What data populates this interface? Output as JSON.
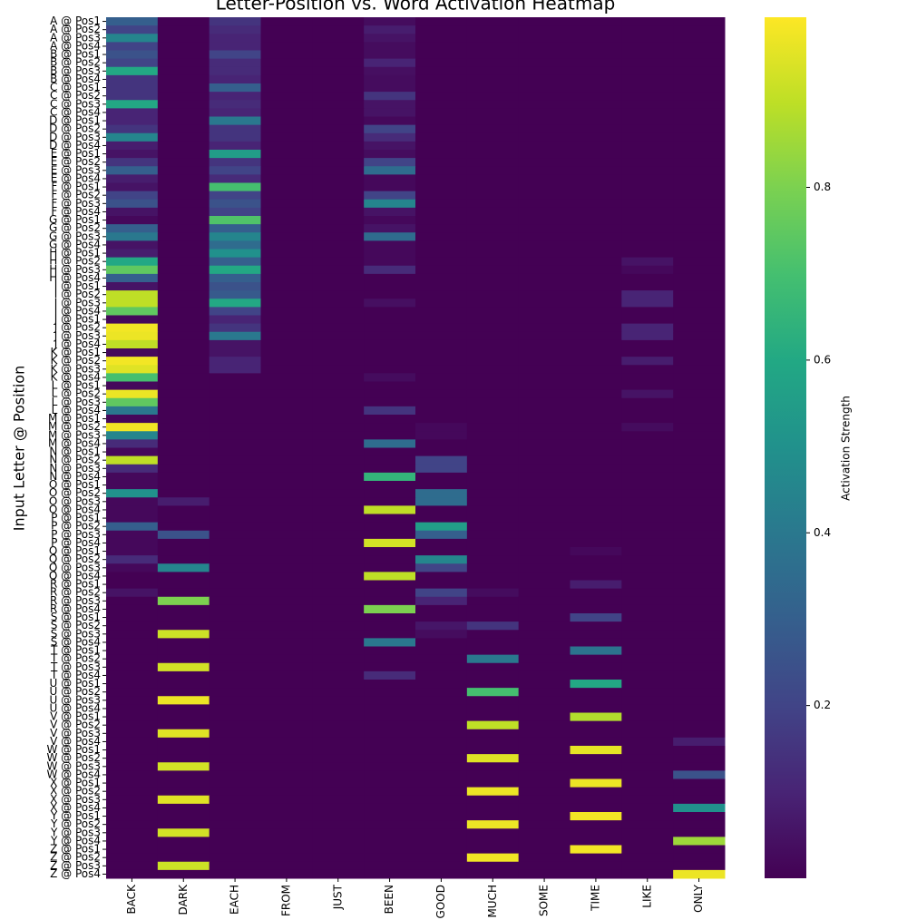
{
  "chart_data": {
    "type": "heatmap",
    "title": "Letter-Position vs. Word Activation Heatmap",
    "ylabel": "Input Letter @ Position",
    "colorbar_label": "Activation Strength",
    "colormap": "viridis",
    "zlim": [
      0,
      0.997
    ],
    "zticks": [
      0.2,
      0.4,
      0.6,
      0.8
    ],
    "x_categories": [
      "BACK",
      "DARK",
      "EACH",
      "FROM",
      "JUST",
      "BEEN",
      "GOOD",
      "MUCH",
      "SOME",
      "TIME",
      "LIKE",
      "ONLY"
    ],
    "y_categories": [
      "A @ Pos1",
      "A @ Pos2",
      "A @ Pos3",
      "A @ Pos4",
      "B @ Pos1",
      "B @ Pos2",
      "B @ Pos3",
      "B @ Pos4",
      "C @ Pos1",
      "C @ Pos2",
      "C @ Pos3",
      "C @ Pos4",
      "D @ Pos1",
      "D @ Pos2",
      "D @ Pos3",
      "D @ Pos4",
      "E @ Pos1",
      "E @ Pos2",
      "E @ Pos3",
      "E @ Pos4",
      "F @ Pos1",
      "F @ Pos2",
      "F @ Pos3",
      "F @ Pos4",
      "G @ Pos1",
      "G @ Pos2",
      "G @ Pos3",
      "G @ Pos4",
      "H @ Pos1",
      "H @ Pos2",
      "H @ Pos3",
      "H @ Pos4",
      "I @ Pos1",
      "I @ Pos2",
      "I @ Pos3",
      "I @ Pos4",
      "J @ Pos1",
      "J @ Pos2",
      "J @ Pos3",
      "J @ Pos4",
      "K @ Pos1",
      "K @ Pos2",
      "K @ Pos3",
      "K @ Pos4",
      "L @ Pos1",
      "L @ Pos2",
      "L @ Pos3",
      "L @ Pos4",
      "M @ Pos1",
      "M @ Pos2",
      "M @ Pos3",
      "M @ Pos4",
      "N @ Pos1",
      "N @ Pos2",
      "N @ Pos3",
      "N @ Pos4",
      "O @ Pos1",
      "O @ Pos2",
      "O @ Pos3",
      "O @ Pos4",
      "P @ Pos1",
      "P @ Pos2",
      "P @ Pos3",
      "P @ Pos4",
      "Q @ Pos1",
      "Q @ Pos2",
      "Q @ Pos3",
      "Q @ Pos4",
      "R @ Pos1",
      "R @ Pos2",
      "R @ Pos3",
      "R @ Pos4",
      "S @ Pos1",
      "S @ Pos2",
      "S @ Pos3",
      "S @ Pos4",
      "T @ Pos1",
      "T @ Pos2",
      "T @ Pos3",
      "T @ Pos4",
      "U @ Pos1",
      "U @ Pos2",
      "U @ Pos3",
      "U @ Pos4",
      "V @ Pos1",
      "V @ Pos2",
      "V @ Pos3",
      "V @ Pos4",
      "W @ Pos1",
      "W @ Pos2",
      "W @ Pos3",
      "W @ Pos4",
      "X @ Pos1",
      "X @ Pos2",
      "X @ Pos3",
      "X @ Pos4",
      "Y @ Pos1",
      "Y @ Pos2",
      "Y @ Pos3",
      "Y @ Pos4",
      "Z @ Pos1",
      "Z @ Pos2",
      "Z @ Pos3",
      "Z @ Pos4"
    ],
    "z": [
      [
        0.3,
        0,
        0.15,
        0,
        0,
        0.03,
        0,
        0,
        0,
        0,
        0,
        0
      ],
      [
        0.2,
        0,
        0.12,
        0,
        0,
        0.08,
        0,
        0,
        0,
        0,
        0,
        0
      ],
      [
        0.45,
        0,
        0.1,
        0,
        0,
        0.05,
        0,
        0,
        0,
        0,
        0,
        0
      ],
      [
        0.2,
        0,
        0.1,
        0,
        0,
        0.03,
        0,
        0,
        0,
        0,
        0,
        0
      ],
      [
        0.25,
        0,
        0.2,
        0,
        0,
        0.03,
        0,
        0,
        0,
        0,
        0,
        0
      ],
      [
        0.2,
        0,
        0.12,
        0,
        0,
        0.1,
        0,
        0,
        0,
        0,
        0,
        0
      ],
      [
        0.6,
        0,
        0.12,
        0,
        0,
        0.04,
        0,
        0,
        0,
        0,
        0,
        0
      ],
      [
        0.15,
        0,
        0.1,
        0,
        0,
        0.03,
        0,
        0,
        0,
        0,
        0,
        0
      ],
      [
        0.15,
        0,
        0.3,
        0,
        0,
        0.03,
        0,
        0,
        0,
        0,
        0,
        0
      ],
      [
        0.15,
        0,
        0.1,
        0,
        0,
        0.15,
        0,
        0,
        0,
        0,
        0,
        0
      ],
      [
        0.6,
        0,
        0.12,
        0,
        0,
        0.05,
        0,
        0,
        0,
        0,
        0,
        0
      ],
      [
        0.1,
        0,
        0.1,
        0,
        0,
        0.05,
        0,
        0,
        0,
        0,
        0,
        0
      ],
      [
        0.1,
        0,
        0.4,
        0,
        0,
        0.02,
        0,
        0,
        0,
        0,
        0,
        0
      ],
      [
        0.15,
        0,
        0.15,
        0,
        0,
        0.2,
        0,
        0,
        0,
        0,
        0,
        0
      ],
      [
        0.45,
        0,
        0.15,
        0,
        0,
        0.12,
        0,
        0,
        0,
        0,
        0,
        0
      ],
      [
        0.08,
        0,
        0.1,
        0,
        0,
        0.05,
        0,
        0,
        0,
        0,
        0,
        0
      ],
      [
        0.05,
        0,
        0.55,
        0,
        0,
        0.03,
        0,
        0,
        0,
        0,
        0,
        0
      ],
      [
        0.15,
        0,
        0.15,
        0,
        0,
        0.2,
        0,
        0,
        0,
        0,
        0,
        0
      ],
      [
        0.3,
        0,
        0.2,
        0,
        0,
        0.35,
        0,
        0,
        0,
        0,
        0,
        0
      ],
      [
        0.08,
        0,
        0.12,
        0,
        0,
        0.02,
        0,
        0,
        0,
        0,
        0,
        0
      ],
      [
        0.05,
        0,
        0.7,
        0,
        0,
        0.02,
        0,
        0,
        0,
        0,
        0,
        0
      ],
      [
        0.2,
        0,
        0.2,
        0,
        0,
        0.2,
        0,
        0,
        0,
        0,
        0,
        0
      ],
      [
        0.25,
        0,
        0.25,
        0,
        0,
        0.45,
        0,
        0,
        0,
        0,
        0,
        0
      ],
      [
        0.05,
        0,
        0.2,
        0,
        0,
        0.05,
        0,
        0,
        0,
        0,
        0,
        0
      ],
      [
        0.02,
        0,
        0.72,
        0,
        0,
        0.02,
        0,
        0,
        0,
        0,
        0,
        0
      ],
      [
        0.3,
        0,
        0.3,
        0,
        0,
        0.05,
        0,
        0,
        0,
        0,
        0,
        0
      ],
      [
        0.4,
        0,
        0.45,
        0,
        0,
        0.35,
        0,
        0,
        0,
        0,
        0,
        0
      ],
      [
        0.05,
        0,
        0.35,
        0,
        0,
        0.02,
        0,
        0,
        0,
        0,
        0,
        0
      ],
      [
        0.08,
        0,
        0.5,
        0,
        0,
        0.02,
        0,
        0,
        0,
        0,
        0,
        0
      ],
      [
        0.6,
        0,
        0.3,
        0,
        0,
        0.02,
        0,
        0,
        0,
        0,
        0.05,
        0
      ],
      [
        0.75,
        0,
        0.6,
        0,
        0,
        0.12,
        0,
        0,
        0,
        0,
        0.02,
        0
      ],
      [
        0.3,
        0,
        0.3,
        0,
        0,
        0,
        0,
        0,
        0,
        0,
        0,
        0
      ],
      [
        0.05,
        0,
        0.25,
        0,
        0,
        0,
        0,
        0,
        0,
        0,
        0,
        0
      ],
      [
        0.9,
        0,
        0.28,
        0,
        0,
        0,
        0,
        0,
        0,
        0,
        0.1,
        0
      ],
      [
        0.9,
        0,
        0.6,
        0,
        0,
        0.04,
        0,
        0,
        0,
        0,
        0.1,
        0
      ],
      [
        0.75,
        0,
        0.2,
        0,
        0,
        0,
        0,
        0,
        0,
        0,
        0,
        0
      ],
      [
        0.02,
        0,
        0.1,
        0,
        0,
        0,
        0,
        0,
        0,
        0,
        0,
        0
      ],
      [
        0.98,
        0,
        0.15,
        0,
        0,
        0,
        0,
        0,
        0,
        0,
        0.1,
        0
      ],
      [
        0.97,
        0,
        0.4,
        0,
        0,
        0,
        0,
        0,
        0,
        0,
        0.1,
        0
      ],
      [
        0.9,
        0,
        0.05,
        0,
        0,
        0,
        0,
        0,
        0,
        0,
        0,
        0
      ],
      [
        0.02,
        0,
        0.05,
        0,
        0,
        0,
        0,
        0,
        0,
        0,
        0,
        0
      ],
      [
        0.98,
        0,
        0.1,
        0,
        0,
        0,
        0,
        0,
        0,
        0,
        0.08,
        0
      ],
      [
        0.95,
        0,
        0.1,
        0,
        0,
        0,
        0,
        0,
        0,
        0,
        0,
        0
      ],
      [
        0.7,
        0,
        0,
        0,
        0,
        0.03,
        0,
        0,
        0,
        0,
        0,
        0
      ],
      [
        0.02,
        0,
        0,
        0,
        0,
        0,
        0,
        0,
        0,
        0,
        0,
        0
      ],
      [
        0.97,
        0,
        0,
        0,
        0,
        0,
        0,
        0,
        0,
        0,
        0.05,
        0
      ],
      [
        0.75,
        0,
        0,
        0,
        0,
        0,
        0,
        0,
        0,
        0,
        0,
        0
      ],
      [
        0.4,
        0,
        0,
        0,
        0,
        0.15,
        0,
        0,
        0,
        0,
        0,
        0
      ],
      [
        0.02,
        0,
        0,
        0,
        0,
        0,
        0,
        0,
        0,
        0,
        0,
        0
      ],
      [
        0.98,
        0,
        0,
        0,
        0,
        0,
        0.02,
        0,
        0,
        0,
        0.03,
        0
      ],
      [
        0.45,
        0,
        0,
        0,
        0,
        0,
        0.02,
        0,
        0,
        0,
        0,
        0
      ],
      [
        0.12,
        0,
        0,
        0,
        0,
        0.35,
        0,
        0,
        0,
        0,
        0,
        0
      ],
      [
        0.02,
        0,
        0,
        0,
        0,
        0,
        0,
        0,
        0,
        0,
        0,
        0
      ],
      [
        0.9,
        0,
        0,
        0,
        0,
        0,
        0.2,
        0,
        0,
        0,
        0,
        0
      ],
      [
        0.12,
        0,
        0,
        0,
        0,
        0,
        0.2,
        0,
        0,
        0,
        0,
        0
      ],
      [
        0.02,
        0,
        0,
        0,
        0,
        0.65,
        0,
        0,
        0,
        0,
        0,
        0
      ],
      [
        0.02,
        0,
        0,
        0,
        0,
        0,
        0,
        0,
        0,
        0,
        0,
        0
      ],
      [
        0.5,
        0,
        0,
        0,
        0,
        0,
        0.35,
        0,
        0,
        0,
        0,
        0
      ],
      [
        0.02,
        0.08,
        0,
        0,
        0,
        0,
        0.35,
        0,
        0,
        0,
        0,
        0
      ],
      [
        0.02,
        0,
        0,
        0,
        0,
        0.9,
        0,
        0,
        0,
        0,
        0,
        0
      ],
      [
        0.02,
        0,
        0,
        0,
        0,
        0,
        0,
        0,
        0,
        0,
        0,
        0
      ],
      [
        0.3,
        0,
        0,
        0,
        0,
        0,
        0.55,
        0,
        0,
        0,
        0,
        0
      ],
      [
        0.02,
        0.25,
        0,
        0,
        0,
        0,
        0.3,
        0,
        0,
        0,
        0,
        0
      ],
      [
        0.02,
        0,
        0,
        0,
        0,
        0.93,
        0,
        0,
        0,
        0,
        0,
        0
      ],
      [
        0.02,
        0,
        0,
        0,
        0,
        0,
        0,
        0,
        0,
        0.02,
        0,
        0
      ],
      [
        0.12,
        0,
        0,
        0,
        0,
        0,
        0.45,
        0,
        0,
        0,
        0,
        0
      ],
      [
        0.02,
        0.45,
        0,
        0,
        0,
        0,
        0.2,
        0,
        0,
        0,
        0,
        0
      ],
      [
        0,
        0,
        0,
        0,
        0,
        0.9,
        0,
        0,
        0,
        0,
        0,
        0
      ],
      [
        0,
        0,
        0,
        0,
        0,
        0,
        0,
        0,
        0,
        0.08,
        0,
        0
      ],
      [
        0.05,
        0,
        0,
        0,
        0,
        0,
        0.2,
        0.03,
        0,
        0,
        0,
        0
      ],
      [
        0,
        0.8,
        0,
        0,
        0,
        0,
        0.1,
        0,
        0,
        0,
        0,
        0
      ],
      [
        0,
        0,
        0,
        0,
        0,
        0.8,
        0,
        0,
        0,
        0,
        0,
        0
      ],
      [
        0,
        0,
        0,
        0,
        0,
        0,
        0,
        0,
        0,
        0.2,
        0,
        0
      ],
      [
        0,
        0,
        0,
        0,
        0,
        0,
        0.06,
        0.15,
        0,
        0,
        0,
        0
      ],
      [
        0,
        0.92,
        0,
        0,
        0,
        0,
        0.03,
        0,
        0,
        0,
        0,
        0
      ],
      [
        0,
        0,
        0,
        0,
        0,
        0.4,
        0,
        0,
        0,
        0,
        0,
        0
      ],
      [
        0,
        0,
        0,
        0,
        0,
        0,
        0,
        0,
        0,
        0.38,
        0,
        0
      ],
      [
        0,
        0,
        0,
        0,
        0,
        0,
        0,
        0.4,
        0,
        0,
        0,
        0
      ],
      [
        0,
        0.93,
        0,
        0,
        0,
        0,
        0,
        0,
        0,
        0,
        0,
        0
      ],
      [
        0,
        0,
        0,
        0,
        0,
        0.12,
        0,
        0,
        0,
        0,
        0,
        0
      ],
      [
        0,
        0,
        0,
        0,
        0,
        0,
        0,
        0,
        0,
        0.6,
        0,
        0
      ],
      [
        0,
        0,
        0,
        0,
        0,
        0,
        0,
        0.7,
        0,
        0,
        0,
        0
      ],
      [
        0,
        0.97,
        0,
        0,
        0,
        0,
        0,
        0,
        0,
        0,
        0,
        0
      ],
      [
        0,
        0,
        0,
        0,
        0,
        0,
        0,
        0,
        0,
        0,
        0,
        0
      ],
      [
        0,
        0,
        0,
        0,
        0,
        0,
        0,
        0,
        0,
        0.88,
        0,
        0
      ],
      [
        0,
        0,
        0,
        0,
        0,
        0,
        0,
        0.9,
        0,
        0,
        0,
        0
      ],
      [
        0,
        0.95,
        0,
        0,
        0,
        0,
        0,
        0,
        0,
        0,
        0,
        0
      ],
      [
        0,
        0,
        0,
        0,
        0,
        0,
        0,
        0,
        0,
        0,
        0,
        0.08
      ],
      [
        0,
        0,
        0,
        0,
        0,
        0,
        0,
        0,
        0,
        0.96,
        0,
        0
      ],
      [
        0,
        0,
        0,
        0,
        0,
        0,
        0,
        0.95,
        0,
        0,
        0,
        0
      ],
      [
        0,
        0.93,
        0,
        0,
        0,
        0,
        0,
        0,
        0,
        0,
        0,
        0
      ],
      [
        0,
        0,
        0,
        0,
        0,
        0,
        0,
        0,
        0,
        0,
        0,
        0.25
      ],
      [
        0,
        0,
        0,
        0,
        0,
        0,
        0,
        0,
        0,
        0.97,
        0,
        0
      ],
      [
        0,
        0,
        0,
        0,
        0,
        0,
        0,
        0.97,
        0,
        0,
        0,
        0
      ],
      [
        0,
        0.95,
        0,
        0,
        0,
        0,
        0,
        0,
        0,
        0,
        0,
        0
      ],
      [
        0,
        0,
        0,
        0,
        0,
        0,
        0,
        0,
        0,
        0,
        0,
        0.5
      ],
      [
        0,
        0,
        0,
        0,
        0,
        0,
        0,
        0,
        0,
        0.98,
        0,
        0
      ],
      [
        0,
        0,
        0,
        0,
        0,
        0,
        0,
        0.97,
        0,
        0,
        0,
        0
      ],
      [
        0,
        0.93,
        0,
        0,
        0,
        0,
        0,
        0,
        0,
        0,
        0,
        0
      ],
      [
        0,
        0,
        0,
        0,
        0,
        0,
        0,
        0,
        0,
        0,
        0,
        0.85
      ],
      [
        0,
        0,
        0,
        0,
        0,
        0,
        0,
        0,
        0,
        0.98,
        0,
        0
      ],
      [
        0,
        0,
        0,
        0,
        0,
        0,
        0,
        0.98,
        0,
        0,
        0,
        0
      ],
      [
        0,
        0.92,
        0,
        0,
        0,
        0,
        0,
        0,
        0,
        0,
        0,
        0
      ],
      [
        0,
        0,
        0,
        0,
        0,
        0,
        0,
        0,
        0,
        0,
        0,
        0.97
      ]
    ]
  }
}
